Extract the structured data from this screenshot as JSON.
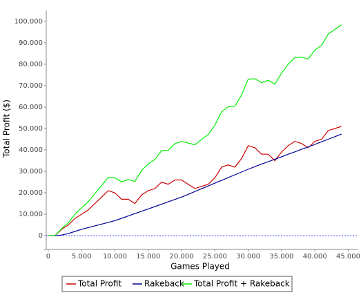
{
  "chart_data": {
    "type": "line",
    "x_label": "Games Played",
    "y_label": "Total Profit ($)",
    "xlim": [
      -300,
      46400
    ],
    "ylim": [
      -5100,
      105100
    ],
    "xticks": [
      0,
      {
        "value": 5000,
        "label": "5.000"
      },
      {
        "value": 10000,
        "label": "10.000"
      },
      {
        "value": 15000,
        "label": "15.000"
      },
      {
        "value": 20000,
        "label": "20.000"
      },
      {
        "value": 25000,
        "label": "25.000"
      },
      {
        "value": 30000,
        "label": "30.000"
      },
      {
        "value": 35000,
        "label": "35.000"
      },
      {
        "value": 40000,
        "label": "40.000"
      },
      {
        "value": 45000,
        "label": "45.000"
      }
    ],
    "yticks": [
      0,
      {
        "value": 10000,
        "label": "10.000"
      },
      {
        "value": 20000,
        "label": "20.000"
      },
      {
        "value": 30000,
        "label": "30.000"
      },
      {
        "value": 40000,
        "label": "40.000"
      },
      {
        "value": 50000,
        "label": "50.000"
      },
      {
        "value": 60000,
        "label": "60.000"
      },
      {
        "value": 70000,
        "label": "70.000"
      },
      {
        "value": 80000,
        "label": "80.000"
      },
      {
        "value": 90000,
        "label": "90.000"
      },
      {
        "value": 100000,
        "label": "100.000"
      }
    ],
    "x": [
      0,
      1000,
      2000,
      3000,
      4000,
      5000,
      6000,
      7000,
      8000,
      9000,
      10000,
      11000,
      12000,
      13000,
      14000,
      15000,
      16000,
      17000,
      18000,
      19000,
      20000,
      21000,
      22000,
      23000,
      24000,
      25000,
      26000,
      27000,
      28000,
      29000,
      30000,
      31000,
      32000,
      33000,
      34000,
      35000,
      36000,
      37000,
      38000,
      39000,
      40000,
      41000,
      42000,
      43000,
      44000
    ],
    "series": [
      {
        "name": "Total Profit",
        "color": "#cc0000",
        "values": [
          0,
          0,
          3000,
          5000,
          8000,
          10000,
          12000,
          15000,
          18000,
          21000,
          20000,
          17000,
          17000,
          15000,
          19000,
          21000,
          22000,
          25000,
          24000,
          26000,
          26000,
          24000,
          22000,
          23000,
          24000,
          27000,
          32000,
          33000,
          32000,
          36000,
          42000,
          41000,
          38000,
          38000,
          35000,
          39000,
          42000,
          44000,
          43000,
          41000,
          44000,
          45000,
          49000,
          50000,
          51000
        ]
      },
      {
        "name": "Rakeback",
        "color": "#000099",
        "values": [
          0,
          0,
          300,
          1000,
          2000,
          3000,
          3800,
          4600,
          5400,
          6200,
          7000,
          8100,
          9200,
          10300,
          11400,
          12500,
          13600,
          14700,
          15800,
          16900,
          18000,
          19300,
          20600,
          21900,
          23200,
          24500,
          25800,
          27100,
          28400,
          29700,
          31000,
          32200,
          33400,
          34500,
          35700,
          36800,
          38000,
          39100,
          40300,
          41400,
          42600,
          43800,
          45000,
          46200,
          47400
        ]
      },
      {
        "name": "Total Profit + Rakeback",
        "color": "#00ee00",
        "values": [
          0,
          0,
          3300,
          6000,
          10000,
          13000,
          15800,
          19600,
          23400,
          27200,
          27000,
          25100,
          26200,
          25300,
          30400,
          33500,
          35600,
          39700,
          39800,
          42900,
          44000,
          43200,
          42400,
          44900,
          47200,
          51500,
          57800,
          60100,
          60400,
          65700,
          73000,
          73200,
          71400,
          72500,
          70700,
          75800,
          80000,
          83100,
          83300,
          82400,
          86600,
          88800,
          94000,
          96200,
          98400
        ]
      }
    ]
  }
}
